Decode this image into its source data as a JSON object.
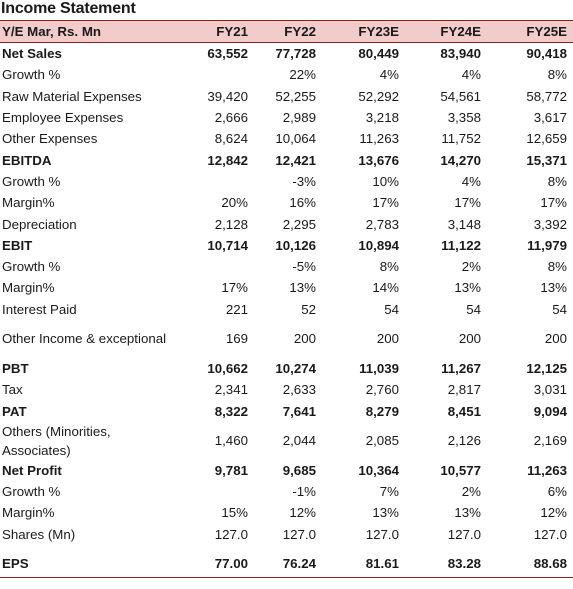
{
  "title": "Income Statement",
  "header": [
    "Y/E Mar, Rs. Mn",
    "FY21",
    "FY22",
    "FY23E",
    "FY24E",
    "FY25E"
  ],
  "rows": [
    {
      "label": "Net Sales",
      "values": [
        "63,552",
        "77,728",
        "80,449",
        "83,940",
        "90,418"
      ],
      "bold": true
    },
    {
      "label": "Growth %",
      "values": [
        "",
        "22%",
        "4%",
        "4%",
        "8%"
      ],
      "bold": false
    },
    {
      "label": "Raw Material Expenses",
      "values": [
        "39,420",
        "52,255",
        "52,292",
        "54,561",
        "58,772"
      ],
      "bold": false
    },
    {
      "label": "Employee Expenses",
      "values": [
        "2,666",
        "2,989",
        "3,218",
        "3,358",
        "3,617"
      ],
      "bold": false
    },
    {
      "label": "Other Expenses",
      "values": [
        "8,624",
        "10,064",
        "11,263",
        "11,752",
        "12,659"
      ],
      "bold": false
    },
    {
      "label": "EBITDA",
      "values": [
        "12,842",
        "12,421",
        "13,676",
        "14,270",
        "15,371"
      ],
      "bold": true
    },
    {
      "label": "Growth %",
      "values": [
        "",
        "-3%",
        "10%",
        "4%",
        "8%"
      ],
      "bold": false
    },
    {
      "label": "Margin%",
      "values": [
        "20%",
        "16%",
        "17%",
        "17%",
        "17%"
      ],
      "bold": false
    },
    {
      "label": "Depreciation",
      "values": [
        "2,128",
        "2,295",
        "2,783",
        "3,148",
        "3,392"
      ],
      "bold": false
    },
    {
      "label": "EBIT",
      "values": [
        "10,714",
        "10,126",
        "10,894",
        "11,122",
        "11,979"
      ],
      "bold": true
    },
    {
      "label": "Growth %",
      "values": [
        "",
        "-5%",
        "8%",
        "2%",
        "8%"
      ],
      "bold": false
    },
    {
      "label": "Margin%",
      "values": [
        "17%",
        "13%",
        "14%",
        "13%",
        "13%"
      ],
      "bold": false
    },
    {
      "label": "Interest Paid",
      "values": [
        "221",
        "52",
        "54",
        "54",
        "54"
      ],
      "bold": false
    },
    {
      "label": "Other Income & exceptional",
      "values": [
        "169",
        "200",
        "200",
        "200",
        "200"
      ],
      "bold": false,
      "tall": true
    },
    {
      "label": "PBT",
      "values": [
        "10,662",
        "10,274",
        "11,039",
        "11,267",
        "12,125"
      ],
      "bold": true
    },
    {
      "label": "Tax",
      "values": [
        "2,341",
        "2,633",
        "2,760",
        "2,817",
        "3,031"
      ],
      "bold": false
    },
    {
      "label": "PAT",
      "values": [
        "8,322",
        "7,641",
        "8,279",
        "8,451",
        "9,094"
      ],
      "bold": true
    },
    {
      "label": "Others (Minorities, Associates)",
      "values": [
        "1,460",
        "2,044",
        "2,085",
        "2,126",
        "2,169"
      ],
      "bold": false,
      "tall": true
    },
    {
      "label": "Net Profit",
      "values": [
        "9,781",
        "9,685",
        "10,364",
        "10,577",
        "11,263"
      ],
      "bold": true
    },
    {
      "label": "Growth %",
      "values": [
        "",
        "-1%",
        "7%",
        "2%",
        "6%"
      ],
      "bold": false
    },
    {
      "label": "Margin%",
      "values": [
        "15%",
        "12%",
        "13%",
        "13%",
        "12%"
      ],
      "bold": false
    },
    {
      "label": "Shares (Mn)",
      "values": [
        "127.0",
        "127.0",
        "127.0",
        "127.0",
        "127.0"
      ],
      "bold": false
    },
    {
      "label": "EPS",
      "values": [
        "77.00",
        "76.24",
        "81.61",
        "83.28",
        "88.68"
      ],
      "bold": true,
      "last": true
    }
  ],
  "colors": {
    "header_bg": "#f2cbcb",
    "rule": "#8a1f1f"
  }
}
